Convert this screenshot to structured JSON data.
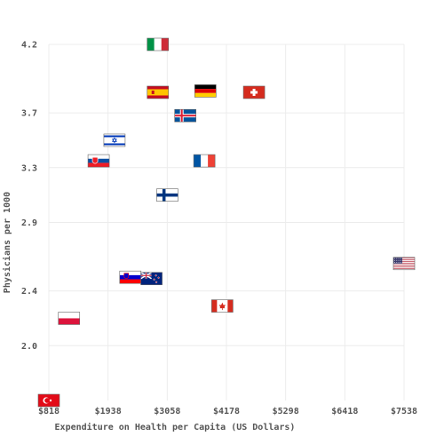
{
  "chart_data": {
    "type": "scatter",
    "title": "",
    "xlabel": "Expenditure on Health per Capita (US Dollars)",
    "ylabel": "Physicians per 1000",
    "xlim": [
      818,
      7538
    ],
    "ylim": [
      1.6,
      4.2
    ],
    "x_ticks": [
      818,
      1938,
      3058,
      4178,
      5298,
      6418,
      7538
    ],
    "x_tick_labels": [
      "$818",
      "$1938",
      "$3058",
      "$4178",
      "$5298",
      "$6418",
      "$7538"
    ],
    "y_ticks": [
      2.0,
      2.4,
      2.9,
      3.3,
      3.7,
      4.2
    ],
    "y_tick_labels": [
      "2.0",
      "2.4",
      "2.9",
      "3.3",
      "3.7",
      "4.2"
    ],
    "grid": true,
    "marker": "country-flag",
    "points": [
      {
        "flag": "turkey",
        "x": 818,
        "y": 1.6
      },
      {
        "flag": "poland",
        "x": 1200,
        "y": 2.2
      },
      {
        "flag": "slovakia",
        "x": 1760,
        "y": 3.35
      },
      {
        "flag": "israel",
        "x": 2060,
        "y": 3.5
      },
      {
        "flag": "slovenia",
        "x": 2360,
        "y": 2.5
      },
      {
        "flag": "new-zealand",
        "x": 2760,
        "y": 2.49
      },
      {
        "flag": "italy",
        "x": 2880,
        "y": 4.2
      },
      {
        "flag": "spain",
        "x": 2880,
        "y": 3.85
      },
      {
        "flag": "finland",
        "x": 3060,
        "y": 3.1
      },
      {
        "flag": "iceland",
        "x": 3400,
        "y": 3.68
      },
      {
        "flag": "france",
        "x": 3760,
        "y": 3.35
      },
      {
        "flag": "germany",
        "x": 3780,
        "y": 3.86
      },
      {
        "flag": "canada",
        "x": 4100,
        "y": 2.29
      },
      {
        "flag": "switzerland",
        "x": 4700,
        "y": 3.85
      },
      {
        "flag": "united-states",
        "x": 7538,
        "y": 2.6
      }
    ]
  }
}
